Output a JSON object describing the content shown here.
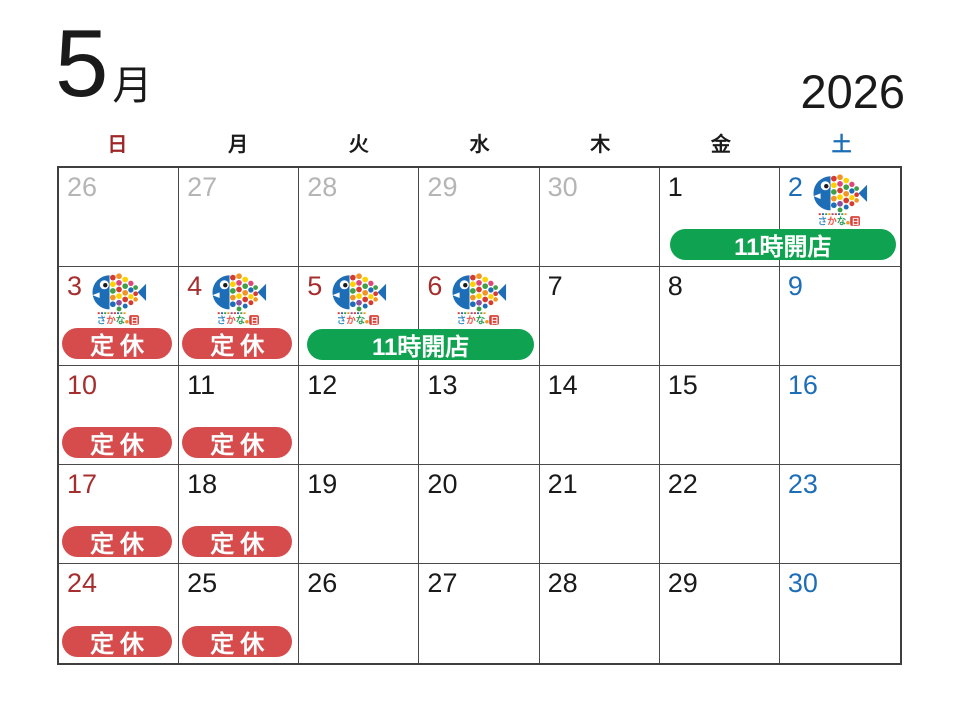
{
  "title": {
    "month": "5",
    "month_label": "月",
    "year": "2026"
  },
  "weekday_header": [
    {
      "label": "日",
      "color": "#9e2828"
    },
    {
      "label": "月",
      "color": "#1a1a1a"
    },
    {
      "label": "火",
      "color": "#1a1a1a"
    },
    {
      "label": "水",
      "color": "#1a1a1a"
    },
    {
      "label": "木",
      "color": "#1a1a1a"
    },
    {
      "label": "金",
      "color": "#1a1a1a"
    },
    {
      "label": "土",
      "color": "#1e6eb7"
    }
  ],
  "colors": {
    "sunday_holiday_date": "#a52f2f",
    "saturday_date": "#1e6eb7",
    "weekday_date": "#1a1a1a",
    "prev_month_date": "#b5b5b5",
    "closed_badge": "#d64c4c",
    "open_badge": "#0fa351",
    "grid_line": "#4a4a4a",
    "fish_blue": "#1e6eb7"
  },
  "badge_labels": {
    "closed": "定休",
    "open": "11時開店"
  },
  "fish_logo": {
    "name": "sakana-no-hi",
    "caption": "さかなの日"
  },
  "weeks": [
    [
      {
        "n": "26",
        "type": "prev"
      },
      {
        "n": "27",
        "type": "prev"
      },
      {
        "n": "28",
        "type": "prev"
      },
      {
        "n": "29",
        "type": "prev"
      },
      {
        "n": "30",
        "type": "prev"
      },
      {
        "n": "1",
        "type": "weekday"
      },
      {
        "n": "2",
        "type": "sat",
        "fish": true
      }
    ],
    [
      {
        "n": "3",
        "type": "holiday",
        "fish": true,
        "closed": true
      },
      {
        "n": "4",
        "type": "holiday",
        "fish": true,
        "closed": true
      },
      {
        "n": "5",
        "type": "holiday",
        "fish": true
      },
      {
        "n": "6",
        "type": "holiday",
        "fish": true
      },
      {
        "n": "7",
        "type": "weekday"
      },
      {
        "n": "8",
        "type": "weekday"
      },
      {
        "n": "9",
        "type": "sat"
      }
    ],
    [
      {
        "n": "10",
        "type": "sun",
        "closed": true
      },
      {
        "n": "11",
        "type": "weekday",
        "closed": true
      },
      {
        "n": "12",
        "type": "weekday"
      },
      {
        "n": "13",
        "type": "weekday"
      },
      {
        "n": "14",
        "type": "weekday"
      },
      {
        "n": "15",
        "type": "weekday"
      },
      {
        "n": "16",
        "type": "sat"
      }
    ],
    [
      {
        "n": "17",
        "type": "sun",
        "closed": true
      },
      {
        "n": "18",
        "type": "weekday",
        "closed": true
      },
      {
        "n": "19",
        "type": "weekday"
      },
      {
        "n": "20",
        "type": "weekday"
      },
      {
        "n": "21",
        "type": "weekday"
      },
      {
        "n": "22",
        "type": "weekday"
      },
      {
        "n": "23",
        "type": "sat"
      }
    ],
    [
      {
        "n": "24",
        "type": "sun",
        "closed": true
      },
      {
        "n": "25",
        "type": "weekday",
        "closed": true
      },
      {
        "n": "26",
        "type": "weekday"
      },
      {
        "n": "27",
        "type": "weekday"
      },
      {
        "n": "28",
        "type": "weekday"
      },
      {
        "n": "29",
        "type": "weekday"
      },
      {
        "n": "30",
        "type": "sat"
      }
    ]
  ],
  "span_events": [
    {
      "week": 0,
      "col_start": 5,
      "col_end": 6,
      "label": "11時開店"
    },
    {
      "week": 1,
      "col_start": 2,
      "col_end": 3,
      "label": "11時開店"
    }
  ]
}
